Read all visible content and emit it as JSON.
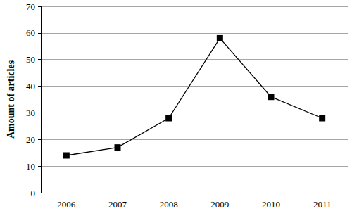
{
  "chart_data": {
    "type": "line",
    "categories": [
      "2006",
      "2007",
      "2008",
      "2009",
      "2010",
      "2011"
    ],
    "values": [
      14,
      17,
      28,
      58,
      36,
      28
    ],
    "y_label": "Amount of articles",
    "color": "#000000",
    "marker": "square",
    "ylim": [
      0,
      70
    ],
    "yticks": [
      0,
      10,
      20,
      30,
      40,
      50,
      60,
      70
    ],
    "grid": true
  }
}
